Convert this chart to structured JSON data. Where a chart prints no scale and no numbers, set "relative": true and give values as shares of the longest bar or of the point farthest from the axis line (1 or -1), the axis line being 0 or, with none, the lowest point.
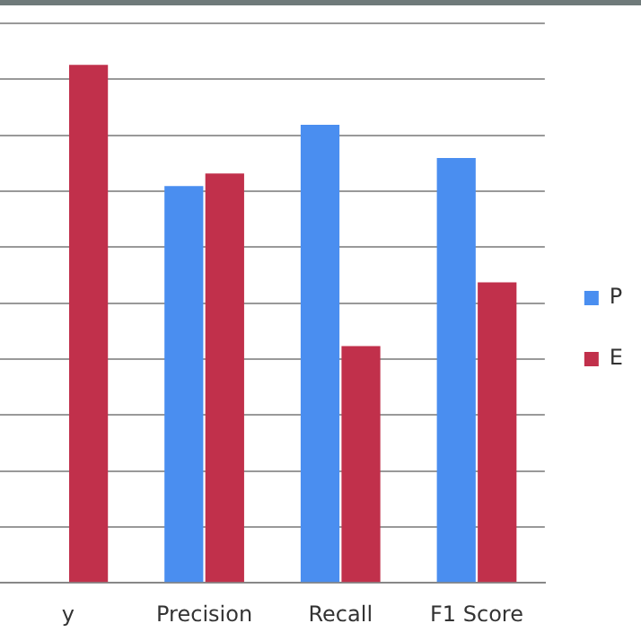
{
  "chart_data": {
    "type": "bar",
    "relative": true,
    "categories": [
      "y",
      "Precision",
      "Recall",
      "F1 Score"
    ],
    "series": [
      {
        "name": "P",
        "color": "#4a8ef0",
        "values": [
          null,
          0.766,
          0.884,
          0.82
        ]
      },
      {
        "name": "E",
        "color": "#c1304b",
        "values": [
          1,
          0.79,
          0.457,
          0.58
        ]
      }
    ],
    "grid": "y",
    "legend": "right"
  }
}
